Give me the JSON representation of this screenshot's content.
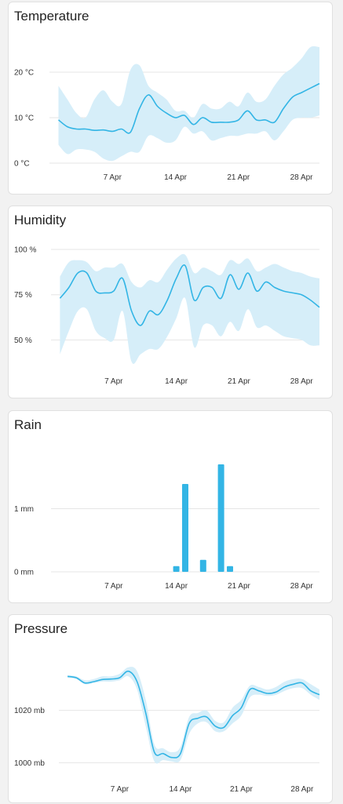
{
  "colors": {
    "line": "#33b5e5",
    "band": "#d6eef9",
    "bar": "#33b5e5",
    "grid": "#e6e6e6"
  },
  "x_ticks": [
    "7 Apr",
    "14 Apr",
    "21 Apr",
    "28 Apr"
  ],
  "chart_data": [
    {
      "type": "line",
      "title": "Temperature",
      "ylim": [
        0,
        25
      ],
      "yticks": [
        0,
        10,
        20
      ],
      "ytick_labels": [
        "0 °C",
        "10 °C",
        "20 °C"
      ],
      "x": [
        1,
        2,
        3,
        4,
        5,
        6,
        7,
        8,
        9,
        10,
        11,
        12,
        13,
        14,
        15,
        16,
        17,
        18,
        19,
        20,
        21,
        22,
        23,
        24,
        25,
        26,
        27,
        28,
        29,
        30
      ],
      "series": [
        {
          "values": [
            9.5,
            8,
            7.5,
            7.5,
            7.2,
            7.3,
            7.0,
            7.5,
            6.8,
            12,
            15,
            12.5,
            11,
            10,
            10.5,
            8.5,
            10,
            9,
            9,
            9,
            9.5,
            11.5,
            9.5,
            9.5,
            9,
            12,
            14.5,
            15.5,
            16.5,
            17.5
          ]
        },
        {
          "values": [
            17,
            14,
            11,
            10,
            14,
            16,
            13.5,
            13,
            20.5,
            21.5,
            17,
            15.5,
            14,
            11.5,
            11.5,
            10,
            13,
            12,
            12,
            13.5,
            12.5,
            15.5,
            13.5,
            14,
            17,
            19.5,
            21,
            23,
            25.5,
            25.5
          ]
        },
        {
          "values": [
            4,
            2,
            3,
            3,
            2.5,
            1,
            0.5,
            1.5,
            2.5,
            2.5,
            6,
            5.5,
            4.5,
            5,
            8,
            6.5,
            7,
            5,
            5.5,
            6,
            6,
            6.5,
            6.5,
            7,
            5,
            7,
            9.5,
            10,
            10,
            10.5
          ]
        }
      ],
      "grid": true
    },
    {
      "type": "line",
      "title": "Humidity",
      "ylim": [
        35,
        100
      ],
      "yticks": [
        50,
        75,
        100
      ],
      "ytick_labels": [
        "50 %",
        "75 %",
        "100 %"
      ],
      "x": [
        1,
        2,
        3,
        4,
        5,
        6,
        7,
        8,
        9,
        10,
        11,
        12,
        13,
        14,
        15,
        16,
        17,
        18,
        19,
        20,
        21,
        22,
        23,
        24,
        25,
        26,
        27,
        28,
        29,
        30
      ],
      "series": [
        {
          "values": [
            73,
            79,
            87,
            87,
            77,
            76,
            77,
            84,
            66,
            58,
            66,
            64,
            72,
            84,
            91,
            72,
            79,
            79,
            73,
            86,
            78,
            87,
            77,
            82,
            79,
            77,
            76,
            75,
            72,
            68
          ]
        },
        {
          "values": [
            85,
            93,
            94,
            93,
            88,
            90,
            90,
            92,
            82,
            79,
            83,
            82,
            89,
            95,
            97,
            87,
            90,
            88,
            86,
            94,
            92,
            95,
            88,
            90,
            92,
            90,
            88,
            87,
            85,
            84
          ]
        },
        {
          "values": [
            42,
            55,
            66,
            67,
            55,
            51,
            50,
            66,
            38,
            42,
            45,
            45,
            52,
            62,
            73,
            46,
            58,
            58,
            52,
            60,
            55,
            67,
            57,
            58,
            55,
            52,
            51,
            50,
            47,
            47
          ]
        }
      ],
      "grid": true
    },
    {
      "type": "bar",
      "title": "Rain",
      "ylim": [
        0,
        1.8
      ],
      "yticks": [
        0,
        1
      ],
      "ytick_labels": [
        "0 mm",
        "1 mm"
      ],
      "x": [
        14,
        15,
        17,
        19,
        20
      ],
      "values": [
        0.09,
        1.39,
        0.19,
        1.7,
        0.09
      ],
      "grid": true
    },
    {
      "type": "line",
      "title": "Pressure",
      "ylim": [
        995,
        1040
      ],
      "yticks": [
        1000,
        1020
      ],
      "ytick_labels": [
        "1000 mb",
        "1020 mb"
      ],
      "x": [
        1,
        2,
        3,
        4,
        5,
        6,
        7,
        8,
        9,
        10,
        11,
        12,
        13,
        14,
        15,
        16,
        17,
        18,
        19,
        20,
        21,
        22,
        23,
        24,
        25,
        26,
        27,
        28,
        29,
        30
      ],
      "series": [
        {
          "values": [
            1033,
            1032.5,
            1030.5,
            1031,
            1031.8,
            1032,
            1032.5,
            1035,
            1031,
            1019,
            1004,
            1003.5,
            1002,
            1003.5,
            1015,
            1017,
            1017.5,
            1014,
            1013.5,
            1018,
            1021,
            1028,
            1027.5,
            1026.5,
            1027,
            1029,
            1030,
            1030.5,
            1027.5,
            1026
          ]
        },
        {
          "values": [
            1033.5,
            1033,
            1031.5,
            1032,
            1033,
            1033,
            1034,
            1036.5,
            1035,
            1024,
            1007,
            1005.5,
            1004,
            1006,
            1017.5,
            1019,
            1020,
            1016,
            1015.5,
            1021,
            1024,
            1029.5,
            1029,
            1028,
            1029,
            1031,
            1032,
            1032,
            1030,
            1028
          ]
        },
        {
          "values": [
            1032.5,
            1032,
            1030,
            1030.5,
            1031,
            1031,
            1031.5,
            1033,
            1028,
            1014,
            1000.5,
            1001,
            1000.5,
            1001,
            1011,
            1015,
            1015.5,
            1012,
            1012,
            1015,
            1018,
            1025,
            1026,
            1025.5,
            1026,
            1027.5,
            1028.5,
            1028.5,
            1026,
            1024
          ]
        }
      ],
      "grid": true
    }
  ]
}
